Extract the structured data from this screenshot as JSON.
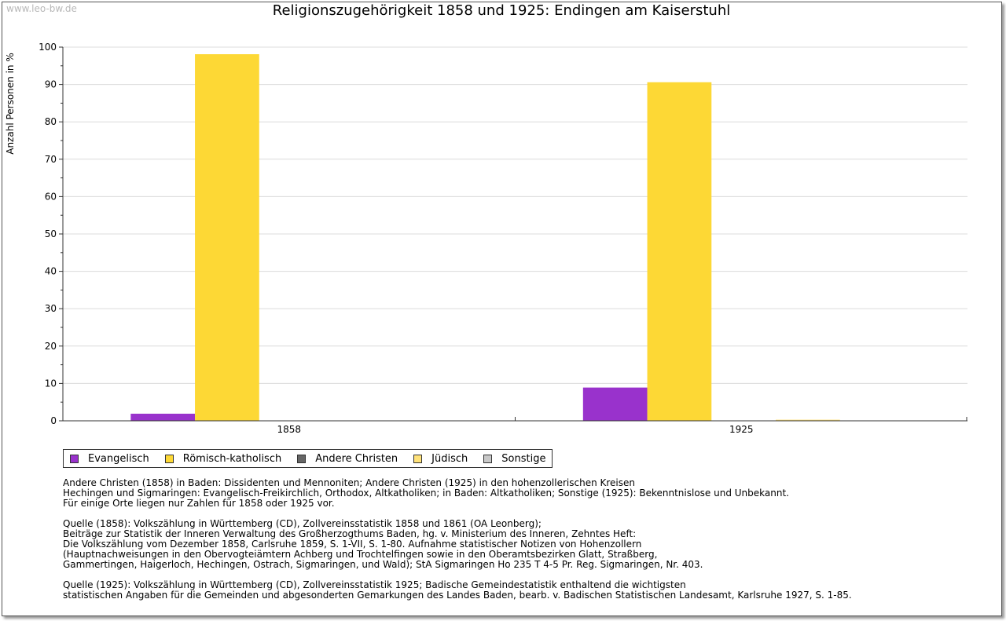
{
  "watermark": "www.leo-bw.de",
  "chart_data": {
    "type": "bar",
    "title": "Religionszugehörigkeit 1858 und 1925: Endingen am Kaiserstuhl",
    "xlabel": "",
    "ylabel": "Anzahl Personen in %",
    "ylim": [
      0,
      100
    ],
    "yticks": [
      "0",
      "10",
      "20",
      "30",
      "40",
      "50",
      "60",
      "70",
      "80",
      "90",
      "100"
    ],
    "categories": [
      "1858",
      "1925"
    ],
    "grid": true,
    "legend_position": "bottom-left",
    "series": [
      {
        "name": "Evangelisch",
        "color": "#9932cc",
        "values": [
          1.9,
          8.9
        ]
      },
      {
        "name": "Römisch-katholisch",
        "color": "#fdd835",
        "values": [
          98.1,
          90.6
        ]
      },
      {
        "name": "Andere Christen",
        "color": "#666666",
        "values": [
          0,
          0
        ]
      },
      {
        "name": "Jüdisch",
        "color": "#ffe27a",
        "values": [
          0,
          0.3
        ]
      },
      {
        "name": "Sonstige",
        "color": "#c8c8c8",
        "values": [
          0,
          0
        ]
      }
    ]
  },
  "notes": [
    [
      "Andere Christen (1858) in Baden: Dissidenten und Mennoniten; Andere Christen (1925) in den hohenzollerischen Kreisen",
      "Hechingen und Sigmaringen: Evangelisch-Freikirchlich, Orthodox, Altkatholiken; in Baden: Altkatholiken; Sonstige (1925): Bekenntnislose und Unbekannt.",
      "Für einige Orte liegen nur Zahlen für 1858 oder 1925 vor."
    ],
    [
      "Quelle (1858): Volkszählung in Württemberg (CD), Zollvereinsstatistik 1858 und 1861 (OA Leonberg);",
      "Beiträge zur Statistik der Inneren Verwaltung des Großherzogthums Baden, hg. v. Ministerium des Inneren, Zehntes Heft:",
      "Die Volkszählung vom Dezember 1858, Carlsruhe 1859, S. 1-VII, S. 1-80. Aufnahme statistischer Notizen von Hohenzollern",
      "(Hauptnachweisungen in den Obervogteiämtern Achberg und Trochtelfingen sowie in den Oberamtsbezirken Glatt, Straßberg,",
      "Gammertingen, Haigerloch, Hechingen, Ostrach, Sigmaringen, und Wald); StA Sigmaringen Ho 235 T 4-5 Pr. Reg. Sigmaringen, Nr. 403."
    ],
    [
      "Quelle (1925): Volkszählung in Württemberg (CD), Zollvereinsstatistik 1925; Badische Gemeindestatistik enthaltend die wichtigsten",
      "statistischen Angaben für die Gemeinden und abgesonderten Gemarkungen des Landes Baden, bearb. v. Badischen Statistischen Landesamt, Karlsruhe 1927, S. 1-85."
    ]
  ]
}
